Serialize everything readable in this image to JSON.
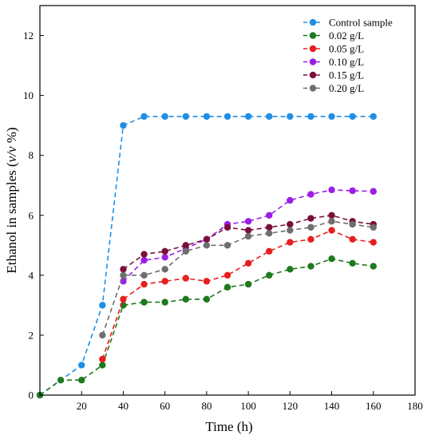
{
  "chart_data": {
    "type": "line",
    "title": "",
    "xlabel": "Time (h)",
    "ylabel_prefix": "Ethanol in samples (",
    "ylabel_italic": "v/v",
    "ylabel_suffix": " %)",
    "xlim": [
      0,
      180
    ],
    "ylim": [
      0,
      13
    ],
    "xticks": [
      20,
      40,
      60,
      80,
      100,
      120,
      140,
      160,
      180
    ],
    "yticks": [
      0,
      2,
      4,
      6,
      8,
      10,
      12
    ],
    "grid": false,
    "legend_position": "top-right",
    "series": [
      {
        "name": "Control sample",
        "color": "#1f8fe6",
        "x": [
          0,
          20,
          30,
          40,
          50,
          60,
          70,
          80,
          90,
          100,
          110,
          120,
          130,
          140,
          150,
          160
        ],
        "y": [
          0,
          1.0,
          3.0,
          9.0,
          9.3,
          9.3,
          9.3,
          9.3,
          9.3,
          9.3,
          9.3,
          9.3,
          9.3,
          9.3,
          9.3,
          9.3
        ]
      },
      {
        "name": "0.02 g/L",
        "color": "#1e7a1e",
        "x": [
          0,
          10,
          20,
          30,
          40,
          50,
          60,
          70,
          80,
          90,
          100,
          110,
          120,
          130,
          140,
          150,
          160
        ],
        "y": [
          0,
          0.5,
          0.5,
          1.0,
          3.0,
          3.1,
          3.1,
          3.2,
          3.2,
          3.6,
          3.7,
          4.0,
          4.2,
          4.3,
          4.55,
          4.4,
          4.3
        ]
      },
      {
        "name": "0.05 g/L",
        "color": "#e81e1e",
        "x": [
          30,
          40,
          50,
          60,
          70,
          80,
          90,
          100,
          110,
          120,
          130,
          140,
          150,
          160
        ],
        "y": [
          1.2,
          3.2,
          3.7,
          3.8,
          3.9,
          3.8,
          4.0,
          4.4,
          4.8,
          5.1,
          5.2,
          5.5,
          5.2,
          5.1
        ]
      },
      {
        "name": "0.10 g/L",
        "color": "#9b1fe6",
        "x": [
          40,
          50,
          60,
          70,
          80,
          90,
          100,
          110,
          120,
          130,
          140,
          150,
          160
        ],
        "y": [
          3.8,
          4.5,
          4.6,
          4.9,
          5.2,
          5.7,
          5.8,
          6.0,
          6.5,
          6.7,
          6.85,
          6.82,
          6.8
        ]
      },
      {
        "name": "0.15 g/L",
        "color": "#7a0f3c",
        "x": [
          40,
          50,
          60,
          70,
          80,
          90,
          100,
          110,
          120,
          130,
          140,
          150,
          160
        ],
        "y": [
          4.2,
          4.7,
          4.8,
          5.0,
          5.2,
          5.6,
          5.5,
          5.6,
          5.7,
          5.9,
          6.0,
          5.8,
          5.7
        ]
      },
      {
        "name": "0.20 g/L",
        "color": "#6e6e6e",
        "x": [
          30,
          40,
          50,
          60,
          70,
          80,
          90,
          100,
          110,
          120,
          130,
          140,
          150,
          160
        ],
        "y": [
          2.0,
          4.0,
          4.0,
          4.2,
          4.8,
          5.0,
          5.0,
          5.3,
          5.4,
          5.5,
          5.6,
          5.8,
          5.7,
          5.6
        ]
      }
    ]
  }
}
